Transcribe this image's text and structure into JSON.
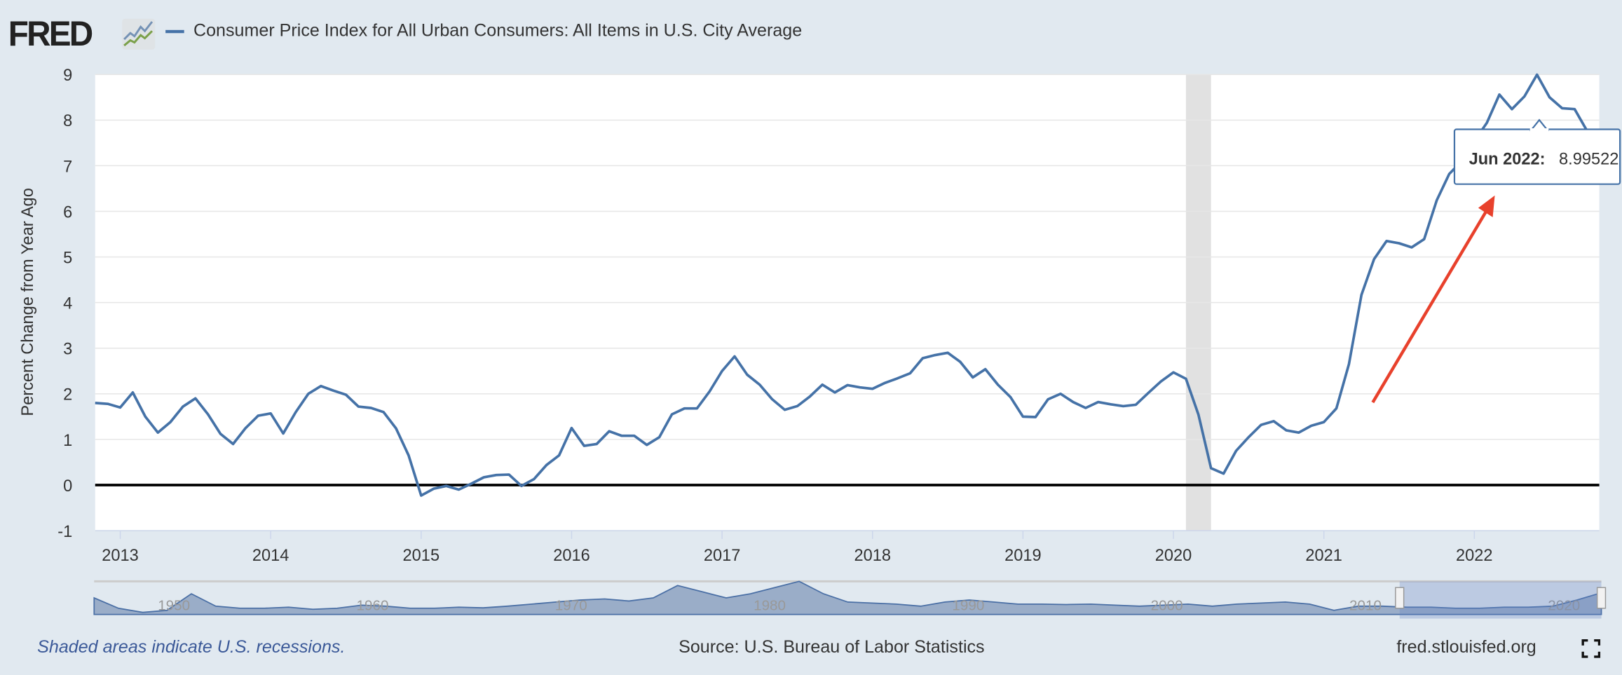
{
  "header": {
    "logo_text": "FRED",
    "series_title": "Consumer Price Index for All Urban Consumers: All Items in U.S. City Average"
  },
  "chart_data": {
    "type": "line",
    "title": "Consumer Price Index for All Urban Consumers: All Items in U.S. City Average",
    "ylabel": "Percent Change from Year Ago",
    "xlabel": "",
    "ylim": [
      -1,
      9
    ],
    "yticks": [
      "-1",
      "0",
      "1",
      "2",
      "3",
      "4",
      "5",
      "6",
      "7",
      "8",
      "9"
    ],
    "xticks": [
      "2013",
      "2014",
      "2015",
      "2016",
      "2017",
      "2018",
      "2019",
      "2020",
      "2021",
      "2022"
    ],
    "grid": true,
    "start_month": "2012-11",
    "frequency": "monthly",
    "series": [
      {
        "name": "Consumer Price Index for All Urban Consumers: All Items in U.S. City Average",
        "color": "#4572a7",
        "values": [
          1.8,
          1.78,
          1.7,
          2.03,
          1.5,
          1.15,
          1.38,
          1.72,
          1.9,
          1.55,
          1.12,
          0.9,
          1.25,
          1.52,
          1.57,
          1.13,
          1.6,
          2.0,
          2.17,
          2.07,
          1.98,
          1.72,
          1.69,
          1.6,
          1.24,
          0.65,
          -0.23,
          -0.08,
          -0.02,
          -0.1,
          0.03,
          0.17,
          0.22,
          0.23,
          -0.02,
          0.13,
          0.44,
          0.65,
          1.25,
          0.86,
          0.9,
          1.18,
          1.08,
          1.08,
          0.88,
          1.05,
          1.55,
          1.68,
          1.68,
          2.05,
          2.5,
          2.82,
          2.42,
          2.2,
          1.88,
          1.65,
          1.73,
          1.94,
          2.2,
          2.03,
          2.19,
          2.14,
          2.11,
          2.24,
          2.34,
          2.45,
          2.78,
          2.85,
          2.9,
          2.7,
          2.36,
          2.54,
          2.2,
          1.93,
          1.5,
          1.49,
          1.88,
          2.0,
          1.82,
          1.69,
          1.82,
          1.77,
          1.73,
          1.76,
          2.02,
          2.27,
          2.47,
          2.33,
          1.54,
          0.37,
          0.25,
          0.75,
          1.05,
          1.32,
          1.4,
          1.2,
          1.15,
          1.3,
          1.38,
          1.68,
          2.65,
          4.17,
          4.95,
          5.35,
          5.3,
          5.21,
          5.39,
          6.24,
          6.82,
          7.1,
          7.54,
          7.94,
          8.56,
          8.24,
          8.52,
          8.99522,
          8.5,
          8.26,
          8.24,
          7.76,
          7.4
        ]
      }
    ],
    "recessions": [
      {
        "start": "2020-02",
        "end": "2020-04"
      }
    ],
    "zero_line": 0,
    "tooltip": {
      "label": "Jun 2022:",
      "value": "8.99522"
    },
    "annotation": {
      "type": "arrow",
      "color": "#e8412c"
    },
    "navigator": {
      "labels": [
        "1950",
        "1960",
        "1970",
        "1980",
        "1990",
        "2000",
        "2010",
        "2020"
      ],
      "values": [
        6,
        1,
        -1,
        0,
        8,
        2,
        1,
        1,
        1.5,
        0.5,
        1,
        2.5,
        2,
        1,
        1,
        1.5,
        1.2,
        2,
        3,
        4,
        5,
        5.5,
        4.5,
        6,
        12,
        9,
        6,
        8,
        11,
        14,
        8,
        4,
        3.5,
        3,
        2,
        4,
        5,
        4,
        3,
        3,
        2.8,
        3,
        2.5,
        2,
        2.5,
        3,
        2,
        3,
        3.5,
        4,
        3,
        0,
        2,
        2,
        1.5,
        1.5,
        1,
        1,
        1.5,
        1.5,
        2,
        5,
        8.5
      ]
    }
  },
  "footer": {
    "recession_note": "Shaded areas indicate U.S. recessions.",
    "source": "Source: U.S. Bureau of Labor Statistics",
    "site": "fred.stlouisfed.org"
  }
}
